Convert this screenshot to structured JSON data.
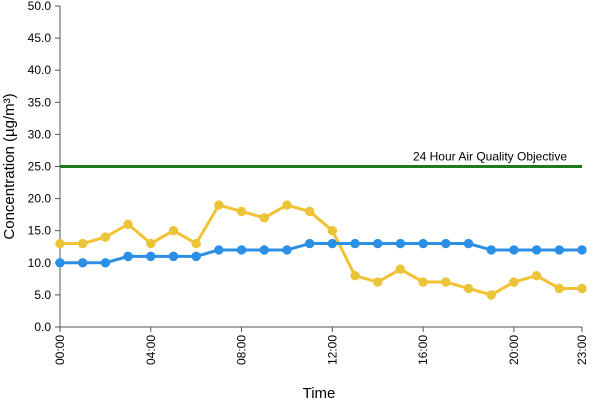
{
  "chart_data": {
    "type": "line",
    "xlabel": "Time",
    "ylabel": "Concentration (µg/m³)",
    "ylim": [
      0,
      50
    ],
    "yticks": [
      "0.0",
      "5.0",
      "10.0",
      "15.0",
      "20.0",
      "25.0",
      "30.0",
      "35.0",
      "40.0",
      "45.0",
      "50.0"
    ],
    "xticks": [
      {
        "hour": 0,
        "label": "00:00"
      },
      {
        "hour": 4,
        "label": "04:00"
      },
      {
        "hour": 8,
        "label": "08:00"
      },
      {
        "hour": 12,
        "label": "12:00"
      },
      {
        "hour": 16,
        "label": "16:00"
      },
      {
        "hour": 20,
        "label": "20:00"
      },
      {
        "hour": 23,
        "label": "23:00"
      }
    ],
    "x": [
      0,
      1,
      2,
      3,
      4,
      5,
      6,
      7,
      8,
      9,
      10,
      11,
      12,
      13,
      14,
      15,
      16,
      17,
      18,
      19,
      20,
      21,
      22,
      23
    ],
    "series": [
      {
        "color": "#f2c232",
        "marker_color": "#e8c53a",
        "values": [
          13,
          13,
          14,
          16,
          13,
          15,
          13,
          19,
          18,
          17,
          19,
          18,
          15,
          8,
          7,
          9,
          7,
          7,
          6,
          5,
          7,
          8,
          6,
          6
        ]
      },
      {
        "color": "#2b8fe6",
        "marker_color": "#2b8fe6",
        "values": [
          10,
          10,
          10,
          11,
          11,
          11,
          11,
          12,
          12,
          12,
          12,
          13,
          13,
          13,
          13,
          13,
          13,
          13,
          13,
          12,
          12,
          12,
          12,
          12
        ]
      }
    ],
    "reference_line": {
      "value": 25,
      "label": "24 Hour Air Quality Objective",
      "color": "#1f7a1f"
    },
    "grid": false
  }
}
